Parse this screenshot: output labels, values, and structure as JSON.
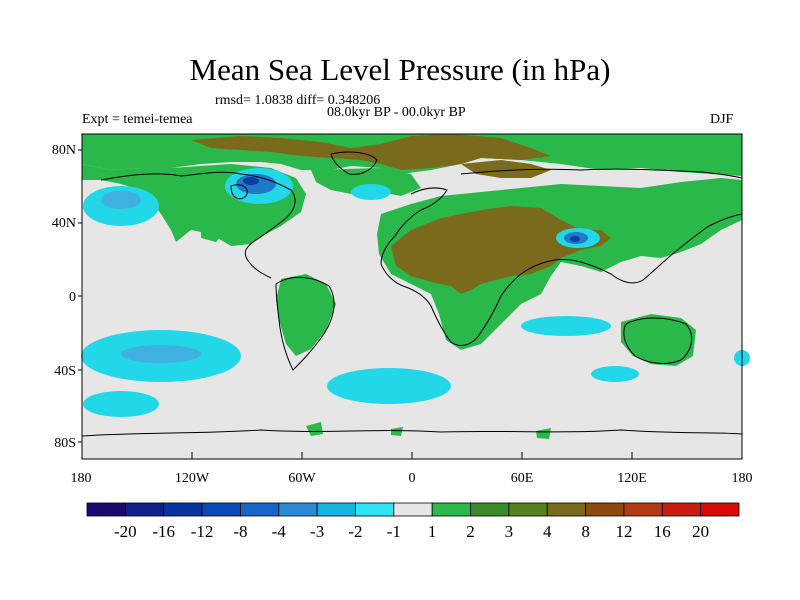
{
  "header": {
    "title": "Mean Sea Level Pressure (in hPa)",
    "stats": "rmsd= 1.0838 diff= 0.348206",
    "experiment": "Expt = temei-temea",
    "period": "08.0kyr BP - 00.0kyr BP",
    "season": "DJF"
  },
  "map": {
    "x_ticks": [
      "180",
      "120W",
      "60W",
      "0",
      "60E",
      "120E",
      "180"
    ],
    "y_ticks": [
      "80N",
      "40N",
      "0",
      "40S",
      "80S"
    ],
    "colors": {
      "ocean": "#e6e6e6",
      "green": "#2ab84a",
      "olive": "#7a6a1c",
      "cyan": "#22d8e8",
      "light_blue": "#3fb0e0",
      "mid_blue": "#1f78c8",
      "dark_blue": "#0a3ca8",
      "coast": "#000000"
    }
  },
  "colorbar": {
    "labels": [
      "-20",
      "-16",
      "-12",
      "-8",
      "-4",
      "-3",
      "-2",
      "-1",
      "1",
      "2",
      "3",
      "4",
      "8",
      "12",
      "16",
      "20"
    ],
    "colors": [
      "#1a0a6e",
      "#10208c",
      "#0b33a0",
      "#0a4ab5",
      "#1466c8",
      "#2a8ad6",
      "#18b4e0",
      "#2ee4f0",
      "#e6e6e6",
      "#2ab84a",
      "#3a8c28",
      "#57801e",
      "#7a6a1c",
      "#8a4a10",
      "#b23a14",
      "#c81e10",
      "#d80a0a"
    ]
  }
}
